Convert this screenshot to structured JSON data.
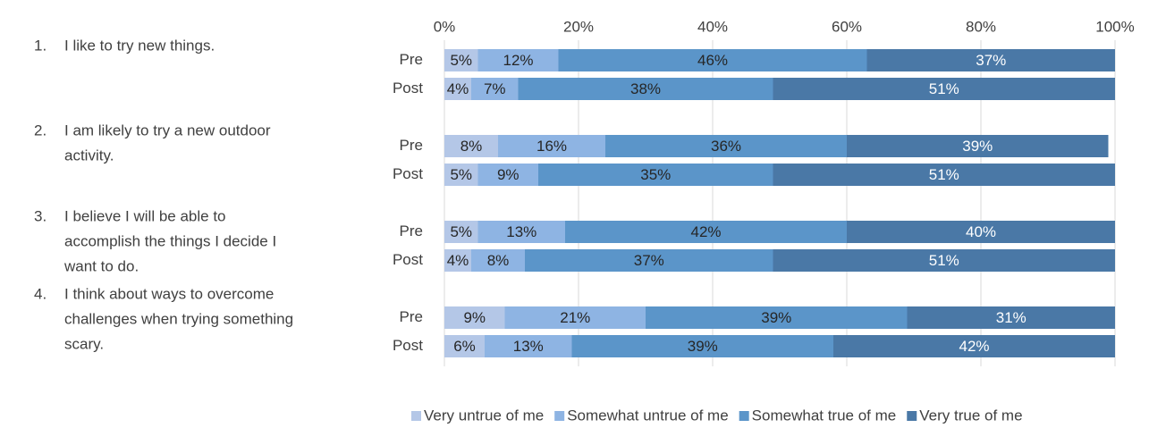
{
  "statements": [
    {
      "number": "1.",
      "lines": [
        "I like to try new things."
      ]
    },
    {
      "number": "2.",
      "lines": [
        "I am likely to try a new outdoor",
        "activity."
      ]
    },
    {
      "number": "3.",
      "lines": [
        "I believe I will be able to",
        "accomplish the things I decide I",
        "want to do."
      ]
    },
    {
      "number": "4.",
      "lines": [
        "I think about ways to overcome",
        "challenges when trying something",
        "scary."
      ]
    }
  ],
  "chart_data": {
    "type": "stacked-barh",
    "categories": [
      "Pre",
      "Post",
      "Pre",
      "Post",
      "Pre",
      "Post",
      "Pre",
      "Post"
    ],
    "series": [
      {
        "name": "Very untrue of me",
        "color": "#b4c7e7",
        "values": [
          5,
          4,
          8,
          5,
          5,
          4,
          9,
          6
        ],
        "value_labels": [
          "5%",
          "4%",
          "8%",
          "5%",
          "5%",
          "4%",
          "9%",
          "6%"
        ]
      },
      {
        "name": "Somewhat untrue of me",
        "color": "#8eb4e3",
        "values": [
          12,
          7,
          16,
          9,
          13,
          8,
          21,
          13
        ],
        "value_labels": [
          "12%",
          "7%",
          "16%",
          "9%",
          "13%",
          "8%",
          "21%",
          "13%"
        ]
      },
      {
        "name": "Somewhat true of me",
        "color": "#5b95c9",
        "values": [
          46,
          38,
          36,
          35,
          42,
          37,
          39,
          39
        ],
        "value_labels": [
          "46%",
          "38%",
          "36%",
          "35%",
          "42%",
          "37%",
          "39%",
          "39%"
        ]
      },
      {
        "name": "Very true of me",
        "color": "#4a78a6",
        "values": [
          37,
          51,
          39,
          51,
          40,
          51,
          31,
          42
        ],
        "value_labels": [
          "37%",
          "51%",
          "39%",
          "51%",
          "40%",
          "51%",
          "31%",
          "42%"
        ]
      }
    ],
    "xlim": [
      0,
      100
    ],
    "xticks": [
      {
        "value": 0,
        "label": "0%"
      },
      {
        "value": 20,
        "label": "20%"
      },
      {
        "value": 40,
        "label": "40%"
      },
      {
        "value": 60,
        "label": "60%"
      },
      {
        "value": 80,
        "label": "80%"
      },
      {
        "value": 100,
        "label": "100%"
      }
    ],
    "grid": true,
    "legend": "bottom"
  }
}
